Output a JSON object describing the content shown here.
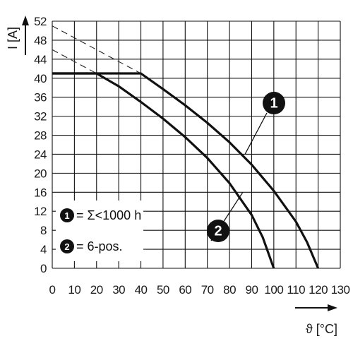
{
  "chart_data": {
    "type": "line",
    "xlabel": "ϑ [°C]",
    "ylabel": "I [A]",
    "xlim": [
      0,
      130
    ],
    "ylim": [
      0,
      52
    ],
    "x_ticks": [
      "0",
      "10",
      "20",
      "30",
      "40",
      "50",
      "60",
      "70",
      "80",
      "90",
      "100",
      "110",
      "120",
      "130"
    ],
    "y_ticks": [
      "0",
      "4",
      "8",
      "12",
      "16",
      "20",
      "24",
      "28",
      "32",
      "36",
      "40",
      "44",
      "48",
      "52"
    ],
    "grid": true,
    "colors": {
      "curve": "#111111",
      "grid": "#111111",
      "dash": "#222222"
    },
    "series": [
      {
        "name": "Σ<1000 h",
        "badge": "1",
        "x": [
          0,
          40,
          50,
          60,
          70,
          80,
          90,
          100,
          110,
          115,
          120
        ],
        "y": [
          41,
          41,
          37.7,
          34.3,
          30.6,
          26.5,
          21.8,
          16.3,
          9.8,
          5.5,
          0
        ]
      },
      {
        "name": "6-pos.",
        "badge": "2",
        "x": [
          0,
          20,
          30,
          40,
          50,
          60,
          70,
          80,
          90,
          95,
          100
        ],
        "y": [
          41,
          41,
          38.3,
          35,
          31.5,
          27.6,
          23.2,
          17.9,
          11.2,
          6.5,
          0
        ]
      },
      {
        "name": "",
        "style": "dashed",
        "x": [
          0,
          40
        ],
        "y": [
          51,
          41
        ]
      },
      {
        "name": "",
        "style": "dashed",
        "x": [
          0,
          20
        ],
        "y": [
          46,
          41
        ]
      }
    ],
    "legend": {
      "placement": "bottom-left",
      "items": [
        {
          "badge": "1",
          "label": "= Σ<1000 h"
        },
        {
          "badge": "2",
          "label": "= 6-pos."
        }
      ]
    },
    "annotations": [
      {
        "badge": "1",
        "points_to_x": 87,
        "points_to_y": 24
      },
      {
        "badge": "2",
        "points_to_x": 86,
        "points_to_y": 16
      }
    ]
  }
}
